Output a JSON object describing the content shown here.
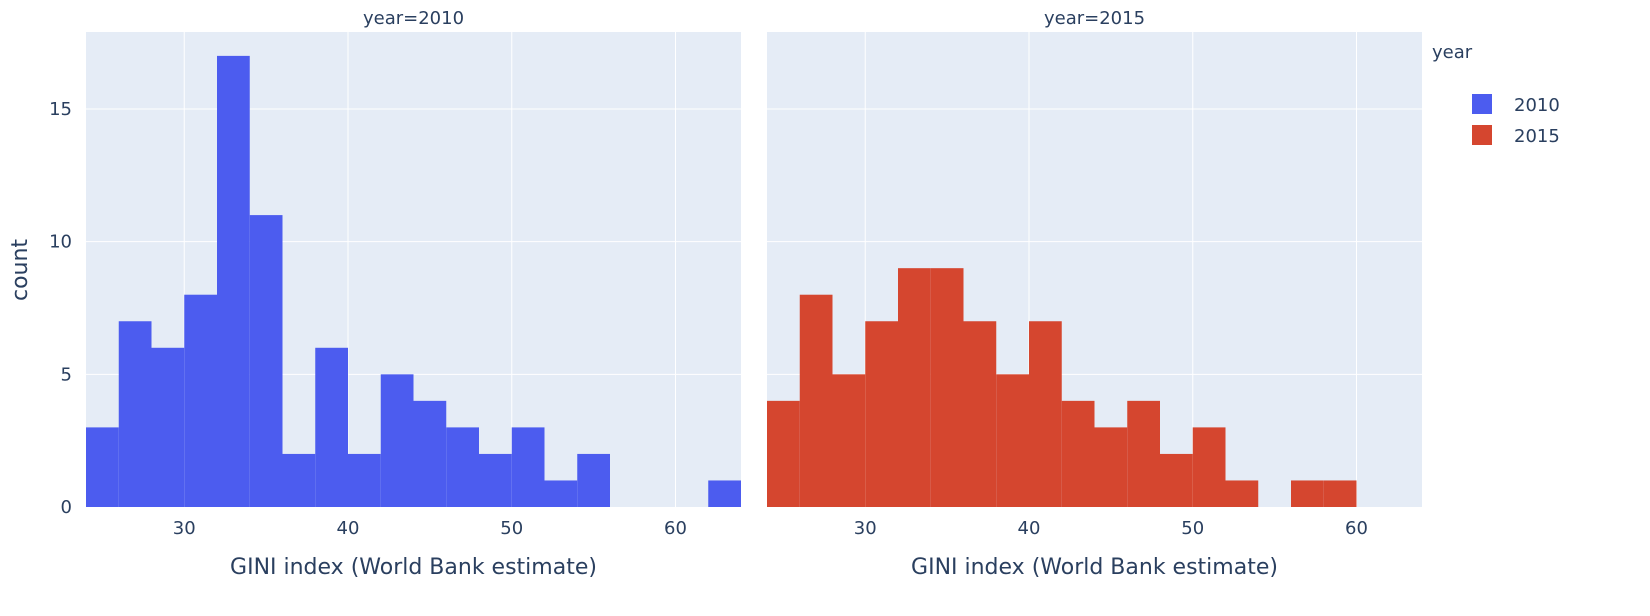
{
  "chart_data": {
    "type": "bar",
    "subtype": "histogram",
    "facet_by": "year",
    "bin_width": 2,
    "ylabel": "count",
    "ylim": [
      0,
      17.9
    ],
    "yticks": [
      0,
      5,
      10,
      15
    ],
    "xticks": [
      30,
      40,
      50,
      60
    ],
    "grid": true,
    "legend": {
      "title": "year",
      "position": "right"
    },
    "panels": [
      {
        "title": "year=2010",
        "series_name": "2010",
        "color": "#4c5cef",
        "xlabel": "GINI index (World Bank estimate)",
        "xlim": [
          24,
          64
        ],
        "bin_starts": [
          24,
          26,
          28,
          30,
          32,
          34,
          36,
          38,
          40,
          42,
          44,
          46,
          48,
          50,
          52,
          54,
          56,
          58,
          60,
          62
        ],
        "values": [
          3,
          7,
          6,
          8,
          17,
          11,
          2,
          6,
          2,
          5,
          4,
          3,
          2,
          3,
          1,
          2,
          0,
          0,
          0,
          1
        ]
      },
      {
        "title": "year=2015",
        "series_name": "2015",
        "color": "#d5462f",
        "xlabel": "GINI index (World Bank estimate)",
        "xlim": [
          24,
          64
        ],
        "bin_starts": [
          24,
          26,
          28,
          30,
          32,
          34,
          36,
          38,
          40,
          42,
          44,
          46,
          48,
          50,
          52,
          54,
          56,
          58,
          60,
          62
        ],
        "values": [
          4,
          8,
          5,
          7,
          9,
          9,
          7,
          5,
          7,
          4,
          3,
          4,
          2,
          3,
          1,
          0,
          1,
          1,
          0,
          0
        ]
      }
    ]
  }
}
